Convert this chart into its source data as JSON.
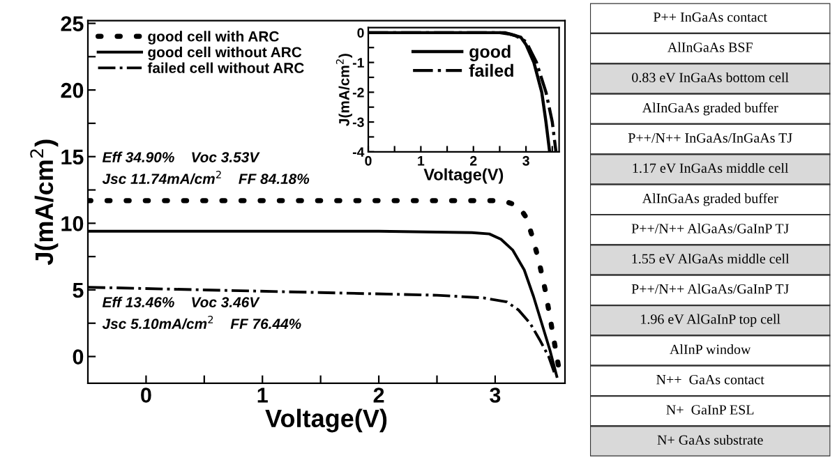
{
  "chart_data": [
    {
      "type": "line",
      "xlabel": "Voltage(V)",
      "ylabel": "J(mA/cm$^{2}$)",
      "xlim": [
        -0.5,
        3.6
      ],
      "ylim": [
        -2,
        25.2
      ],
      "xticks": [
        0,
        {
          "value": 0.5,
          "label": null
        },
        1,
        {
          "value": 1.5,
          "label": null
        },
        2,
        {
          "value": 2.5,
          "label": null
        },
        3
      ],
      "yticks": [
        0,
        {
          "value": 2.5,
          "label": null
        },
        5,
        {
          "value": 7.5,
          "label": null
        },
        10,
        {
          "value": 12.5,
          "label": null
        },
        15,
        {
          "value": 17.5,
          "label": null
        },
        20,
        {
          "value": 22.5,
          "label": null
        },
        25
      ],
      "legend": "top left",
      "grid": false,
      "series": [
        {
          "name": "good cell with ARC",
          "color": "#000000",
          "line_style": "dotted",
          "x": [
            -0.5,
            0.5,
            1.5,
            2.5,
            3.0,
            3.1,
            3.2,
            3.27,
            3.33,
            3.38,
            3.43,
            3.47,
            3.51,
            3.53,
            3.56
          ],
          "values": [
            11.7,
            11.7,
            11.7,
            11.7,
            11.7,
            11.6,
            11.3,
            10.4,
            8.7,
            7.0,
            5.0,
            3.0,
            1.0,
            0,
            -1.5
          ]
        },
        {
          "name": "good cell without ARC",
          "color": "#000000",
          "line_style": "solid",
          "x": [
            -0.5,
            1.0,
            2.0,
            2.8,
            2.95,
            3.05,
            3.15,
            3.25,
            3.33,
            3.4,
            3.47,
            3.53
          ],
          "values": [
            9.4,
            9.4,
            9.4,
            9.3,
            9.2,
            8.8,
            8.0,
            6.5,
            4.5,
            2.5,
            0.5,
            -1.5
          ]
        },
        {
          "name": "failed cell without ARC",
          "color": "#000000",
          "line_style": "dashdot",
          "x": [
            -0.5,
            0.5,
            1.5,
            2.5,
            2.9,
            3.1,
            3.2,
            3.3,
            3.38,
            3.46,
            3.52
          ],
          "values": [
            5.2,
            5.0,
            4.8,
            4.6,
            4.4,
            4.1,
            3.5,
            2.5,
            1.3,
            0,
            -1.5
          ]
        }
      ],
      "annotations": [
        "Eff 34.90%    Voc 3.53V",
        "Jsc 11.74mA/cm$^{2}$    FF 84.18%",
        "Eff 13.46%    Voc 3.46V",
        "Jsc 5.10mA/cm$^{2}$    FF 76.44%"
      ]
    },
    {
      "type": "line",
      "xlabel": "Voltage(V)",
      "ylabel": "J(mA/cm$^{2}$)",
      "xlim": [
        0,
        3.63
      ],
      "ylim": [
        -4,
        0.17
      ],
      "xticks": [
        0,
        {
          "value": 0.5,
          "label": null
        },
        1,
        {
          "value": 1.5,
          "label": null
        },
        2,
        {
          "value": 2.5,
          "label": null
        },
        3,
        {
          "value": 3.5,
          "label": null
        }
      ],
      "yticks": [
        {
          "value": -4,
          "label": "-4"
        },
        {
          "value": -3.5,
          "label": null
        },
        {
          "value": -3,
          "label": "-3"
        },
        {
          "value": -2.5,
          "label": null
        },
        {
          "value": -2,
          "label": "-2"
        },
        {
          "value": -1.5,
          "label": null
        },
        {
          "value": -1,
          "label": "-1"
        },
        {
          "value": -0.5,
          "label": null
        },
        0
      ],
      "legend": "top",
      "grid": false,
      "series": [
        {
          "name": "good",
          "color": "#000000",
          "line_style": "solid",
          "x": [
            0,
            1.0,
            2.0,
            2.5,
            2.7,
            2.9,
            3.0,
            3.15,
            3.3,
            3.38,
            3.45
          ],
          "values": [
            0,
            0,
            0,
            0,
            -0.05,
            -0.15,
            -0.4,
            -1.0,
            -2.0,
            -3.0,
            -4.0
          ]
        },
        {
          "name": "failed",
          "color": "#000000",
          "line_style": "dashdot",
          "x": [
            0,
            1.0,
            2.0,
            2.6,
            2.8,
            3.0,
            3.2,
            3.38,
            3.5,
            3.57
          ],
          "values": [
            0,
            0,
            0,
            0,
            -0.1,
            -0.3,
            -1.0,
            -2.0,
            -3.0,
            -4.0
          ]
        }
      ]
    },
    {
      "type": "other",
      "annotations": [
        "P++ InGaAs contact",
        "AlInGaAs BSF",
        "0.83 eV InGaAs bottom cell",
        "AlInGaAs graded buffer",
        "P++/N++ InGaAs/InGaAs TJ",
        "1.17 eV InGaAs middle cell",
        "AlInGaAs graded buffer",
        "P++/N++ AlGaAs/GaInP TJ",
        "1.55 eV AlGaAs middle cell",
        "P++/N++ AlGaAs/GaInP TJ",
        "1.96 eV AlGaInP top cell",
        "AlInP window",
        "N++  GaAs contact",
        "N+  GaInP ESL",
        "N+ GaAs substrate"
      ],
      "colors": [
        "#ffffff",
        "#ffffff",
        "#d9d9d9",
        "#ffffff",
        "#ffffff",
        "#d9d9d9",
        "#ffffff",
        "#ffffff",
        "#d9d9d9",
        "#ffffff",
        "#d9d9d9",
        "#ffffff",
        "#ffffff",
        "#ffffff",
        "#d9d9d9"
      ]
    }
  ]
}
